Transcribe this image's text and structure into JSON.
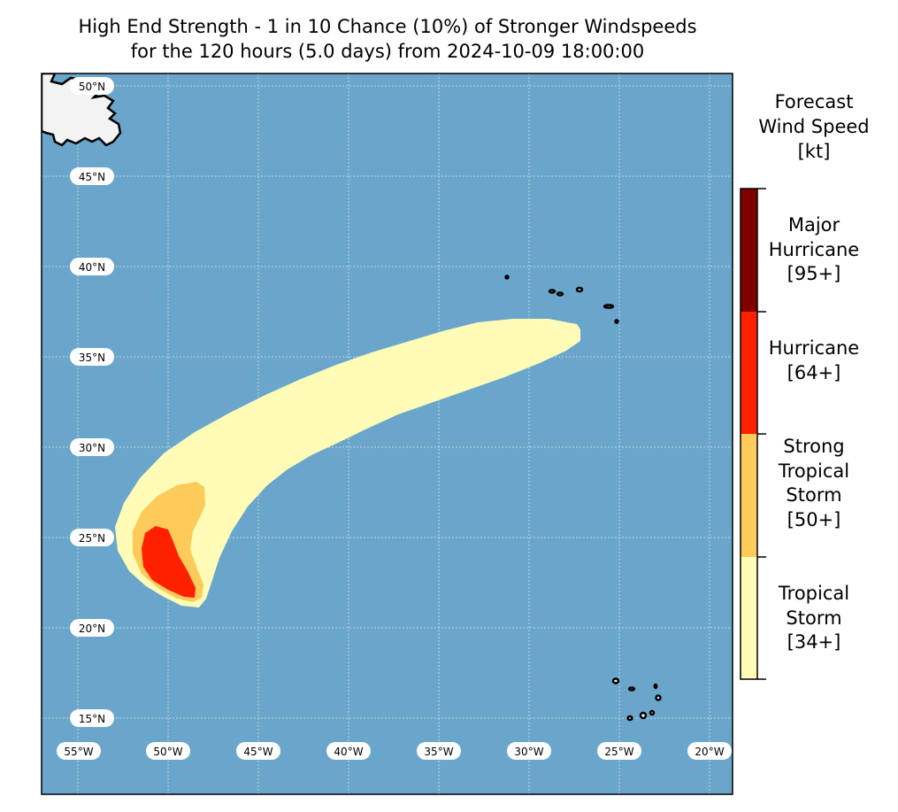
{
  "title": {
    "line1": "High End Strength - 1 in 10 Chance (10%) of Stronger Windspeeds",
    "line2": "for the 120 hours (5.0 days) from 2024-10-09 18:00:00"
  },
  "map": {
    "lat_labels": [
      "50°N",
      "45°N",
      "40°N",
      "35°N",
      "30°N",
      "25°N",
      "20°N",
      "15°N"
    ],
    "lon_labels": [
      "55°W",
      "50°W",
      "45°W",
      "40°W",
      "35°W",
      "30°W",
      "25°W",
      "20°W"
    ],
    "ocean_color": "#6aa6cc",
    "land_color": "#f3f3f3"
  },
  "colorbar": {
    "title": "Forecast\nWind Speed\n[kt]",
    "categories": [
      {
        "label": "Tropical\nStorm\n[34+]",
        "color": "#fffcb8"
      },
      {
        "label": "Strong\nTropical\nStorm\n[50+]",
        "color": "#fecb5b"
      },
      {
        "label": "Hurricane\n[64+]",
        "color": "#fe2100"
      },
      {
        "label": "Major\nHurricane\n[95+]",
        "color": "#7f0000"
      }
    ]
  }
}
